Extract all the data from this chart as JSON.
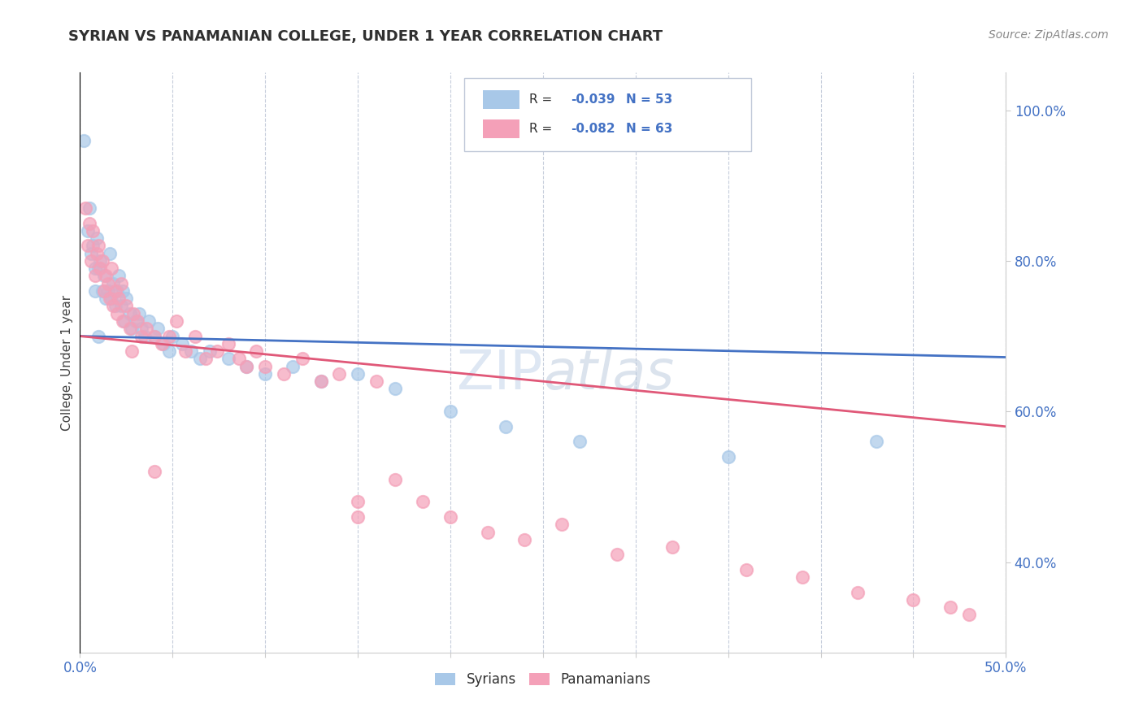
{
  "title": "SYRIAN VS PANAMANIAN COLLEGE, UNDER 1 YEAR CORRELATION CHART",
  "source": "Source: ZipAtlas.com",
  "xlim": [
    0.0,
    0.5
  ],
  "ylim": [
    0.28,
    1.05
  ],
  "syrian_R": -0.039,
  "syrian_N": 53,
  "panamanian_R": -0.082,
  "panamanian_N": 63,
  "syrian_color": "#a8c8e8",
  "panamanian_color": "#f4a0b8",
  "syrian_line_color": "#4472c4",
  "panamanian_line_color": "#e05878",
  "background_color": "#ffffff",
  "grid_color": "#c0c8d8",
  "watermark_color": "#c8d8ec",
  "tick_label_color": "#4472c4",
  "ylabel_color": "#404040",
  "title_color": "#303030",
  "legend_border_color": "#c0c8d8",
  "y_ticks": [
    0.4,
    0.6,
    0.8,
    1.0
  ],
  "x_ticks": [
    0.0,
    0.05,
    0.1,
    0.15,
    0.2,
    0.25,
    0.3,
    0.35,
    0.4,
    0.45,
    0.5
  ],
  "syrian_x": [
    0.002,
    0.004,
    0.005,
    0.006,
    0.007,
    0.008,
    0.008,
    0.009,
    0.01,
    0.011,
    0.012,
    0.013,
    0.014,
    0.015,
    0.016,
    0.017,
    0.018,
    0.019,
    0.02,
    0.021,
    0.022,
    0.023,
    0.024,
    0.025,
    0.027,
    0.028,
    0.03,
    0.032,
    0.033,
    0.035,
    0.037,
    0.04,
    0.042,
    0.045,
    0.048,
    0.05,
    0.055,
    0.06,
    0.065,
    0.07,
    0.08,
    0.09,
    0.1,
    0.115,
    0.13,
    0.15,
    0.17,
    0.2,
    0.23,
    0.27,
    0.35,
    0.43,
    0.01
  ],
  "syrian_y": [
    0.96,
    0.84,
    0.87,
    0.81,
    0.82,
    0.76,
    0.79,
    0.83,
    0.79,
    0.8,
    0.76,
    0.78,
    0.75,
    0.76,
    0.81,
    0.75,
    0.77,
    0.74,
    0.76,
    0.78,
    0.74,
    0.76,
    0.72,
    0.75,
    0.73,
    0.71,
    0.72,
    0.73,
    0.71,
    0.7,
    0.72,
    0.7,
    0.71,
    0.69,
    0.68,
    0.7,
    0.69,
    0.68,
    0.67,
    0.68,
    0.67,
    0.66,
    0.65,
    0.66,
    0.64,
    0.65,
    0.63,
    0.6,
    0.58,
    0.56,
    0.54,
    0.56,
    0.7
  ],
  "panamanian_x": [
    0.003,
    0.004,
    0.005,
    0.006,
    0.007,
    0.008,
    0.009,
    0.01,
    0.011,
    0.012,
    0.013,
    0.014,
    0.015,
    0.016,
    0.017,
    0.018,
    0.019,
    0.02,
    0.021,
    0.022,
    0.023,
    0.025,
    0.027,
    0.029,
    0.031,
    0.033,
    0.036,
    0.04,
    0.044,
    0.048,
    0.052,
    0.057,
    0.062,
    0.068,
    0.074,
    0.08,
    0.086,
    0.09,
    0.095,
    0.1,
    0.11,
    0.12,
    0.13,
    0.14,
    0.15,
    0.16,
    0.17,
    0.185,
    0.2,
    0.22,
    0.24,
    0.26,
    0.29,
    0.32,
    0.36,
    0.39,
    0.42,
    0.45,
    0.47,
    0.48,
    0.028,
    0.04,
    0.15
  ],
  "panamanian_y": [
    0.87,
    0.82,
    0.85,
    0.8,
    0.84,
    0.78,
    0.81,
    0.82,
    0.79,
    0.8,
    0.76,
    0.78,
    0.77,
    0.75,
    0.79,
    0.74,
    0.76,
    0.73,
    0.75,
    0.77,
    0.72,
    0.74,
    0.71,
    0.73,
    0.72,
    0.7,
    0.71,
    0.7,
    0.69,
    0.7,
    0.72,
    0.68,
    0.7,
    0.67,
    0.68,
    0.69,
    0.67,
    0.66,
    0.68,
    0.66,
    0.65,
    0.67,
    0.64,
    0.65,
    0.48,
    0.64,
    0.51,
    0.48,
    0.46,
    0.44,
    0.43,
    0.45,
    0.41,
    0.42,
    0.39,
    0.38,
    0.36,
    0.35,
    0.34,
    0.33,
    0.68,
    0.52,
    0.46
  ]
}
